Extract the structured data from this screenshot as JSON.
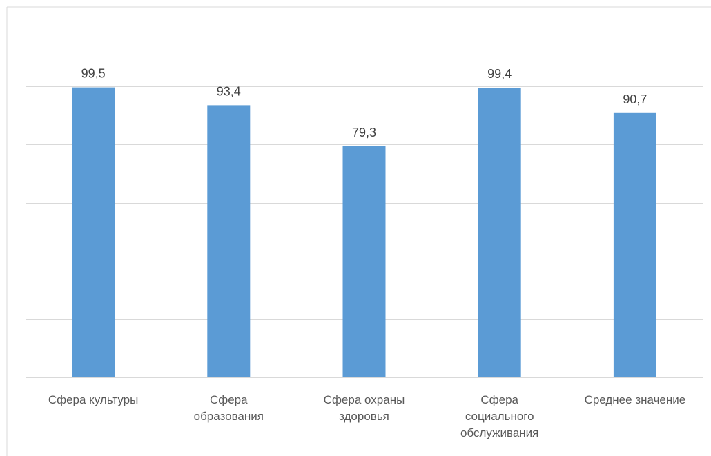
{
  "chart_data": {
    "type": "bar",
    "categories": [
      [
        "Сфера культуры"
      ],
      [
        "Сфера",
        "образования"
      ],
      [
        "Сфера охраны",
        "здоровья"
      ],
      [
        "Сфера",
        "социального",
        "обслуживания"
      ],
      [
        "Среднее значение"
      ]
    ],
    "values": [
      99.5,
      93.4,
      79.3,
      99.4,
      90.7
    ],
    "data_labels": [
      "99,5",
      "93,4",
      "79,3",
      "99,4",
      "90,7"
    ],
    "ylim": [
      0,
      120
    ],
    "grid": true,
    "legend": "none",
    "colors": {
      "bar": "#5b9bd5",
      "grid": "#d9d9d9",
      "label_text": "#404040",
      "category_text": "#595959"
    }
  }
}
